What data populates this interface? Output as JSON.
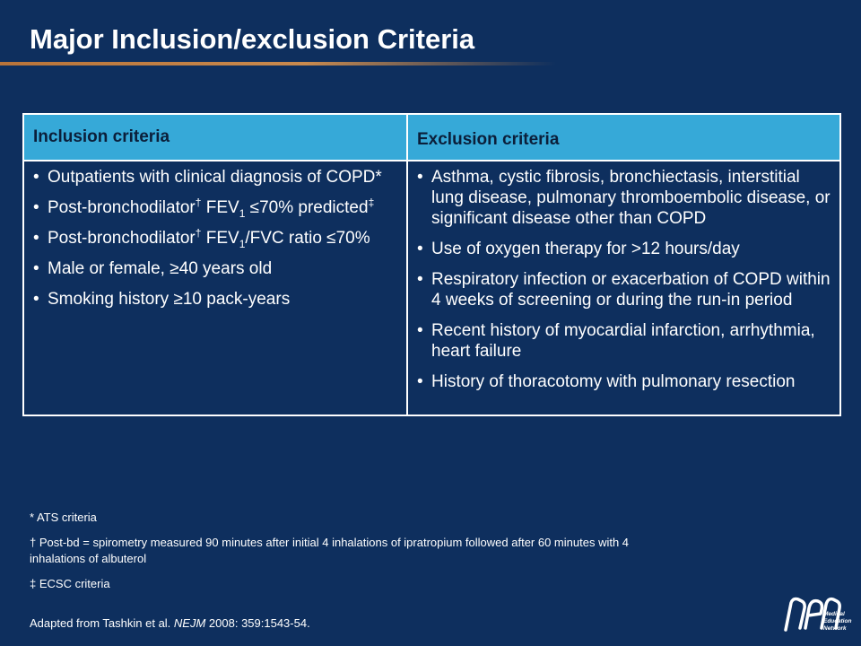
{
  "title": "Major Inclusion/exclusion Criteria",
  "table": {
    "headers": {
      "inclusion": "Inclusion criteria",
      "exclusion": "Exclusion criteria"
    },
    "inclusion": [
      {
        "text": "Outpatients with clinical diagnosis of COPD*"
      },
      {
        "a": "Post-bronchodilator",
        "a_sup": "†",
        "b": " FEV",
        "b_sub": "1",
        "c": " ≤70% predicted",
        "c_sup": "‡"
      },
      {
        "a": "Post-bronchodilator",
        "a_sup": "†",
        "b": " FEV",
        "b_sub": "1",
        "c": "/FVC ratio ≤70%"
      },
      {
        "text": "Male or female, ≥40 years old"
      },
      {
        "text": "Smoking history ≥10 pack-years"
      }
    ],
    "exclusion": [
      "Asthma, cystic fibrosis, bronchiectasis, interstitial lung disease, pulmonary thromboembolic disease, or significant disease other than COPD",
      "Use of oxygen therapy for >12 hours/day",
      "Respiratory infection or exacerbation of COPD within 4 weeks of screening or during the run-in period",
      "Recent history of myocardial infarction, arrhythmia, heart failure",
      "History of thoracotomy with pulmonary resection"
    ]
  },
  "footnotes": [
    "* ATS criteria",
    "† Post-bd = spirometry measured 90 minutes after initial 4 inhalations of ipratropium followed after 60 minutes with 4 inhalations of albuterol",
    "‡ ECSC criteria"
  ],
  "source": {
    "prefix": "Adapted from Tashkin et al. ",
    "journal": "NEJM",
    "suffix": " 2008: 359:1543-54."
  },
  "logo": {
    "initials": "nen",
    "line1": "Medical",
    "line2": "Education",
    "line3": "Network"
  }
}
